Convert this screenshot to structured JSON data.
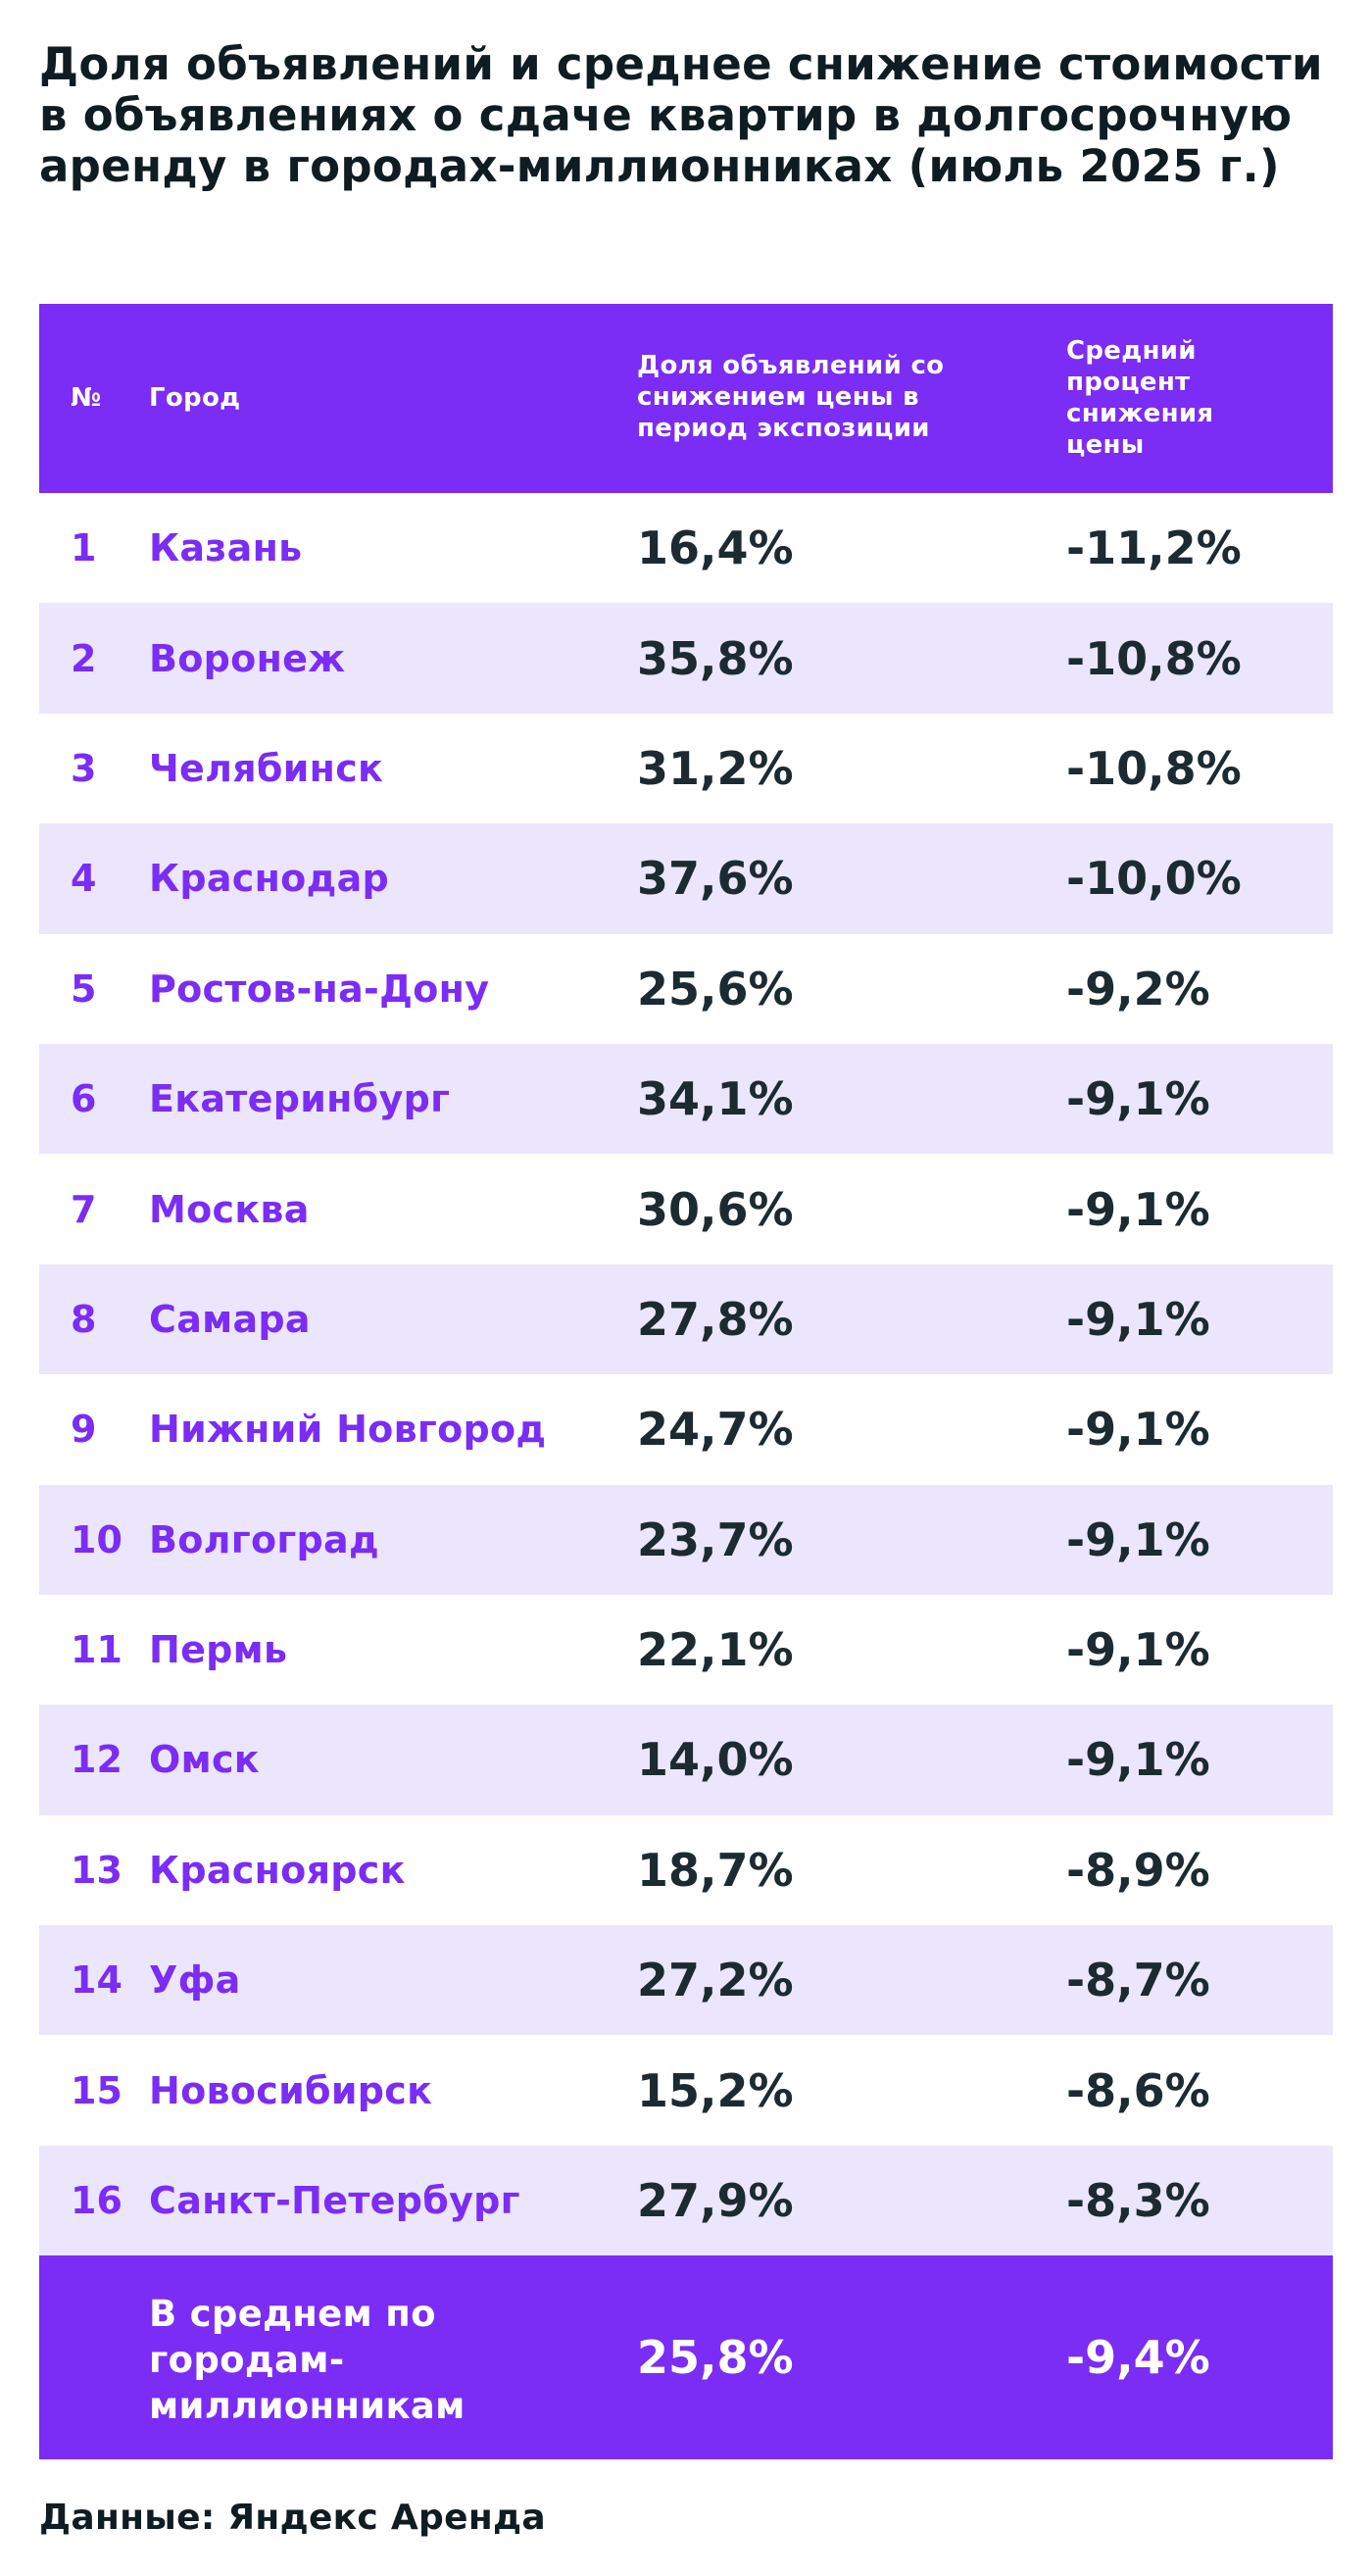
{
  "title": "Доля объявлений и среднее снижение стоимости в объявлениях о сдаче квартир в долгосрочную аренду в городах-миллионниках (июль 2025 г.)",
  "table": {
    "headers": {
      "num": "№",
      "city": "Город",
      "share": "Доля объявлений со снижением цены в период экспозиции",
      "avg": "Средний процент снижения цены"
    },
    "rows": [
      {
        "num": "1",
        "city": "Казань",
        "share": "16,4%",
        "avg": "-11,2%"
      },
      {
        "num": "2",
        "city": "Воронеж",
        "share": "35,8%",
        "avg": "-10,8%"
      },
      {
        "num": "3",
        "city": "Челябинск",
        "share": "31,2%",
        "avg": "-10,8%"
      },
      {
        "num": "4",
        "city": "Краснодар",
        "share": "37,6%",
        "avg": "-10,0%"
      },
      {
        "num": "5",
        "city": "Ростов-на-Дону",
        "share": "25,6%",
        "avg": "-9,2%"
      },
      {
        "num": "6",
        "city": "Екатеринбург",
        "share": "34,1%",
        "avg": "-9,1%"
      },
      {
        "num": "7",
        "city": "Москва",
        "share": "30,6%",
        "avg": "-9,1%"
      },
      {
        "num": "8",
        "city": "Самара",
        "share": "27,8%",
        "avg": "-9,1%"
      },
      {
        "num": "9",
        "city": "Нижний Новгород",
        "share": "24,7%",
        "avg": "-9,1%"
      },
      {
        "num": "10",
        "city": "Волгоград",
        "share": "23,7%",
        "avg": "-9,1%"
      },
      {
        "num": "11",
        "city": "Пермь",
        "share": "22,1%",
        "avg": "-9,1%"
      },
      {
        "num": "12",
        "city": "Омск",
        "share": "14,0%",
        "avg": "-9,1%"
      },
      {
        "num": "13",
        "city": "Красноярск",
        "share": "18,7%",
        "avg": "-8,9%"
      },
      {
        "num": "14",
        "city": "Уфа",
        "share": "27,2%",
        "avg": "-8,7%"
      },
      {
        "num": "15",
        "city": "Новосибирск",
        "share": "15,2%",
        "avg": "-8,6%"
      },
      {
        "num": "16",
        "city": "Санкт-Петербург",
        "share": "27,9%",
        "avg": "-8,3%"
      }
    ],
    "footer": {
      "label": "В среднем по городам-миллионникам",
      "share": "25,8%",
      "avg": "-9,4%"
    }
  },
  "source": "Данные: Яндекс Аренда",
  "colors": {
    "accent": "#7b2cf5",
    "row_alt": "#ebe6fb",
    "text_dark": "#1c2a31"
  }
}
